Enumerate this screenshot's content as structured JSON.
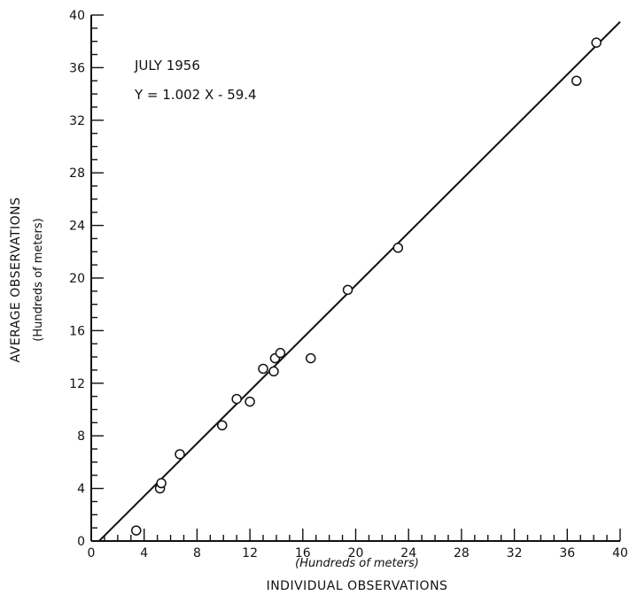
{
  "chart_data": {
    "type": "scatter",
    "annotations": [
      "JULY 1956",
      "Y = 1.002 X - 59.4"
    ],
    "xlabel": "INDIVIDUAL OBSERVATIONS",
    "xlabel_units": "(Hundreds of meters)",
    "ylabel": "AVERAGE OBSERVATIONS",
    "ylabel_units": "(Hundreds of meters)",
    "xlim": [
      0,
      40
    ],
    "ylim": [
      0,
      40
    ],
    "x_ticks": [
      0,
      4,
      8,
      12,
      16,
      20,
      24,
      28,
      32,
      36,
      40
    ],
    "y_ticks": [
      0,
      4,
      8,
      12,
      16,
      20,
      24,
      28,
      32,
      36,
      40
    ],
    "grid": false,
    "points": [
      {
        "x": 3.4,
        "y": 0.8
      },
      {
        "x": 5.2,
        "y": 4.0
      },
      {
        "x": 5.3,
        "y": 4.4
      },
      {
        "x": 6.7,
        "y": 6.6
      },
      {
        "x": 9.9,
        "y": 8.8
      },
      {
        "x": 11.0,
        "y": 10.8
      },
      {
        "x": 12.0,
        "y": 10.6
      },
      {
        "x": 13.0,
        "y": 13.1
      },
      {
        "x": 13.8,
        "y": 12.9
      },
      {
        "x": 13.9,
        "y": 13.9
      },
      {
        "x": 14.3,
        "y": 14.3
      },
      {
        "x": 16.6,
        "y": 13.9
      },
      {
        "x": 19.4,
        "y": 19.1
      },
      {
        "x": 23.2,
        "y": 22.3
      },
      {
        "x": 36.7,
        "y": 35.0
      },
      {
        "x": 38.2,
        "y": 37.9
      }
    ],
    "fit_line": {
      "slope": 1.002,
      "intercept": -0.594
    }
  }
}
